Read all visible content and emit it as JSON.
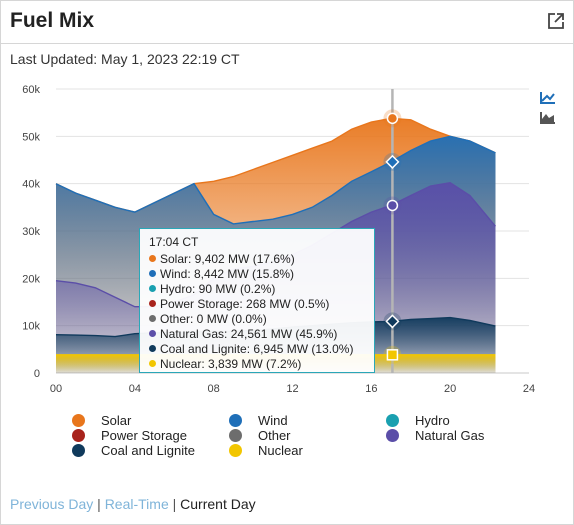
{
  "header": {
    "title": "Fuel Mix",
    "last_updated": "Last Updated: May 1, 2023 22:19 CT"
  },
  "colors": {
    "solar": "#e8761c",
    "wind": "#1f6fb8",
    "hydro": "#1aa0b0",
    "power_storage": "#a8231c",
    "other": "#6d6d6d",
    "natural_gas": "#5b4ea8",
    "coal_lignite": "#103a5c",
    "nuclear": "#f2c600",
    "crosshair": "#b5b5b5"
  },
  "icons": {
    "expand": "external-link-icon",
    "line_view": "line-chart-icon",
    "area_view": "area-chart-icon"
  },
  "tooltip": {
    "time": "17:04 CT",
    "rows": [
      {
        "color": "#e8761c",
        "text": "Solar: 9,402 MW (17.6%)"
      },
      {
        "color": "#1f6fb8",
        "text": "Wind: 8,442 MW (15.8%)"
      },
      {
        "color": "#1aa0b0",
        "text": "Hydro: 90 MW (0.2%)"
      },
      {
        "color": "#a8231c",
        "text": "Power Storage: 268 MW (0.5%)"
      },
      {
        "color": "#6d6d6d",
        "text": "Other: 0 MW (0.0%)"
      },
      {
        "color": "#5b4ea8",
        "text": "Natural Gas: 24,561 MW (45.9%)"
      },
      {
        "color": "#103a5c",
        "text": "Coal and Lignite: 6,945 MW (13.0%)"
      },
      {
        "color": "#f2c600",
        "text": "Nuclear: 3,839 MW (7.2%)"
      }
    ]
  },
  "legend": [
    {
      "label": "Solar",
      "color": "#e8761c"
    },
    {
      "label": "Wind",
      "color": "#1f6fb8"
    },
    {
      "label": "Hydro",
      "color": "#1aa0b0"
    },
    {
      "label": "Power Storage",
      "color": "#a8231c"
    },
    {
      "label": "Other",
      "color": "#6d6d6d"
    },
    {
      "label": "Natural Gas",
      "color": "#5b4ea8"
    },
    {
      "label": "Coal and Lignite",
      "color": "#103a5c"
    },
    {
      "label": "Nuclear",
      "color": "#f2c600"
    }
  ],
  "nav": {
    "previous_day": "Previous Day",
    "separator": "|",
    "real_time": "Real-Time",
    "current_day": "Current Day"
  },
  "chart_data": {
    "type": "area",
    "xlim": [
      0,
      24
    ],
    "ylim": [
      0,
      60000
    ],
    "x_ticks": [
      "00",
      "04",
      "08",
      "12",
      "16",
      "20",
      "24"
    ],
    "y_ticks": [
      "0",
      "10k",
      "20k",
      "30k",
      "40k",
      "50k",
      "60k"
    ],
    "x_values": [
      0,
      1,
      2,
      3,
      4,
      5,
      6,
      7,
      8,
      9,
      10,
      11,
      12,
      13,
      14,
      15,
      16,
      17,
      18,
      19,
      20,
      21,
      22.3
    ],
    "crosshair_x": 17.07,
    "series": [
      {
        "name": "Nuclear",
        "color": "#f2c600",
        "values": [
          3840,
          3840,
          3840,
          3840,
          3840,
          3840,
          3840,
          3840,
          3840,
          3840,
          3840,
          3840,
          3840,
          3840,
          3840,
          3840,
          3840,
          3840,
          3840,
          3840,
          3840,
          3840,
          3840
        ]
      },
      {
        "name": "Coal and Lignite",
        "color": "#103a5c",
        "values": [
          8100,
          8000,
          7900,
          7700,
          8300,
          8500,
          8600,
          8700,
          8800,
          8800,
          9000,
          9300,
          9700,
          10000,
          10300,
          10600,
          10800,
          10900,
          11300,
          11500,
          11700,
          11100,
          9900
        ]
      },
      {
        "name": "Natural Gas",
        "color": "#5b4ea8",
        "values": [
          19500,
          19000,
          18000,
          16000,
          14000,
          14000,
          15000,
          16500,
          20000,
          22000,
          22500,
          23500,
          25000,
          27000,
          29500,
          32000,
          34000,
          35400,
          37500,
          39500,
          40200,
          37500,
          31000
        ]
      },
      {
        "name": "Wind",
        "color": "#1f6fb8",
        "values": [
          40000,
          38000,
          36500,
          35000,
          34000,
          36000,
          38000,
          40000,
          33500,
          31500,
          32000,
          32500,
          33500,
          35000,
          37500,
          40500,
          42500,
          44600,
          47000,
          49000,
          50000,
          49000,
          46500
        ]
      },
      {
        "name": "Solar",
        "color": "#e8761c",
        "values": [
          40000,
          38000,
          36500,
          35000,
          34000,
          36000,
          38000,
          40000,
          40500,
          41500,
          43000,
          44500,
          46000,
          47500,
          49000,
          51500,
          53000,
          53800,
          53500,
          51500,
          50000,
          49000,
          46500
        ]
      }
    ],
    "markers": [
      {
        "name": "Solar",
        "y": 53800,
        "shape": "circle",
        "color": "#e8761c"
      },
      {
        "name": "Wind",
        "y": 44600,
        "shape": "diamond",
        "color": "#1f6fb8"
      },
      {
        "name": "Natural Gas",
        "y": 35400,
        "shape": "circle",
        "color": "#5b4ea8"
      },
      {
        "name": "Coal and Lignite",
        "y": 10900,
        "shape": "diamond",
        "color": "#103a5c"
      },
      {
        "name": "Nuclear",
        "y": 3840,
        "shape": "square",
        "color": "#f2c600"
      }
    ]
  }
}
